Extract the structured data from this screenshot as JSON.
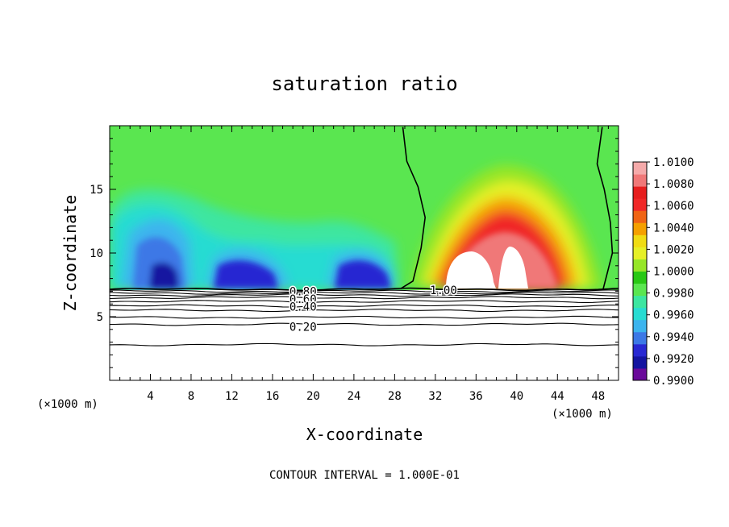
{
  "chart_data": {
    "type": "heatmap",
    "title": "saturation ratio",
    "xlabel": "X-coordinate",
    "ylabel": "Z-coordinate",
    "x_unit": "(×1000 m)",
    "y_unit": "(×1000 m)",
    "xlim": [
      0,
      50
    ],
    "ylim": [
      0,
      20
    ],
    "x_ticks": [
      4,
      8,
      12,
      16,
      20,
      24,
      28,
      32,
      36,
      40,
      44,
      48
    ],
    "y_ticks": [
      5,
      10,
      15
    ],
    "footer": "CONTOUR INTERVAL = 1.000E-01",
    "colorbar": {
      "min": 0.99,
      "max": 1.01,
      "ticks": [
        "1.0100",
        "1.0080",
        "1.0060",
        "1.0040",
        "1.0020",
        "1.0000",
        "0.9980",
        "0.9960",
        "0.9940",
        "0.9920",
        "0.9900"
      ],
      "colors": [
        "#6a0a9a",
        "#1414a0",
        "#2828d2",
        "#3c78e6",
        "#3cb4ee",
        "#28dcd2",
        "#3ce6a0",
        "#5ae650",
        "#28c814",
        "#96e628",
        "#e6f028",
        "#f0dc14",
        "#f5a000",
        "#f06414",
        "#f02828",
        "#e61e1e",
        "#f07878",
        "#f5aaaa"
      ]
    },
    "contour_labels": [
      {
        "text": "0.80",
        "x": 19.0,
        "y": 7.0
      },
      {
        "text": "0.60",
        "x": 19.0,
        "y": 6.4
      },
      {
        "text": "0.40",
        "x": 19.0,
        "y": 5.8
      },
      {
        "text": "0.20",
        "x": 19.0,
        "y": 4.2
      },
      {
        "text": "1.00",
        "x": 32.8,
        "y": 7.1
      }
    ],
    "contour_levels_lower": [
      7.15,
      7.0,
      6.85,
      6.7,
      6.5,
      6.2,
      5.85,
      5.5,
      4.95,
      4.4,
      2.8
    ],
    "saturated_region_boundary": {
      "left_edge": [
        [
          28.6,
          7.2
        ],
        [
          29.8,
          7.8
        ],
        [
          30.6,
          10.4
        ],
        [
          31.0,
          12.8
        ],
        [
          30.3,
          15.2
        ],
        [
          29.2,
          17.2
        ],
        [
          28.8,
          19.9
        ]
      ],
      "right_edge": [
        [
          48.5,
          7.2
        ],
        [
          49.4,
          10.0
        ],
        [
          49.2,
          12.4
        ],
        [
          48.6,
          15.0
        ],
        [
          47.9,
          17.0
        ],
        [
          48.4,
          19.9
        ]
      ]
    }
  }
}
